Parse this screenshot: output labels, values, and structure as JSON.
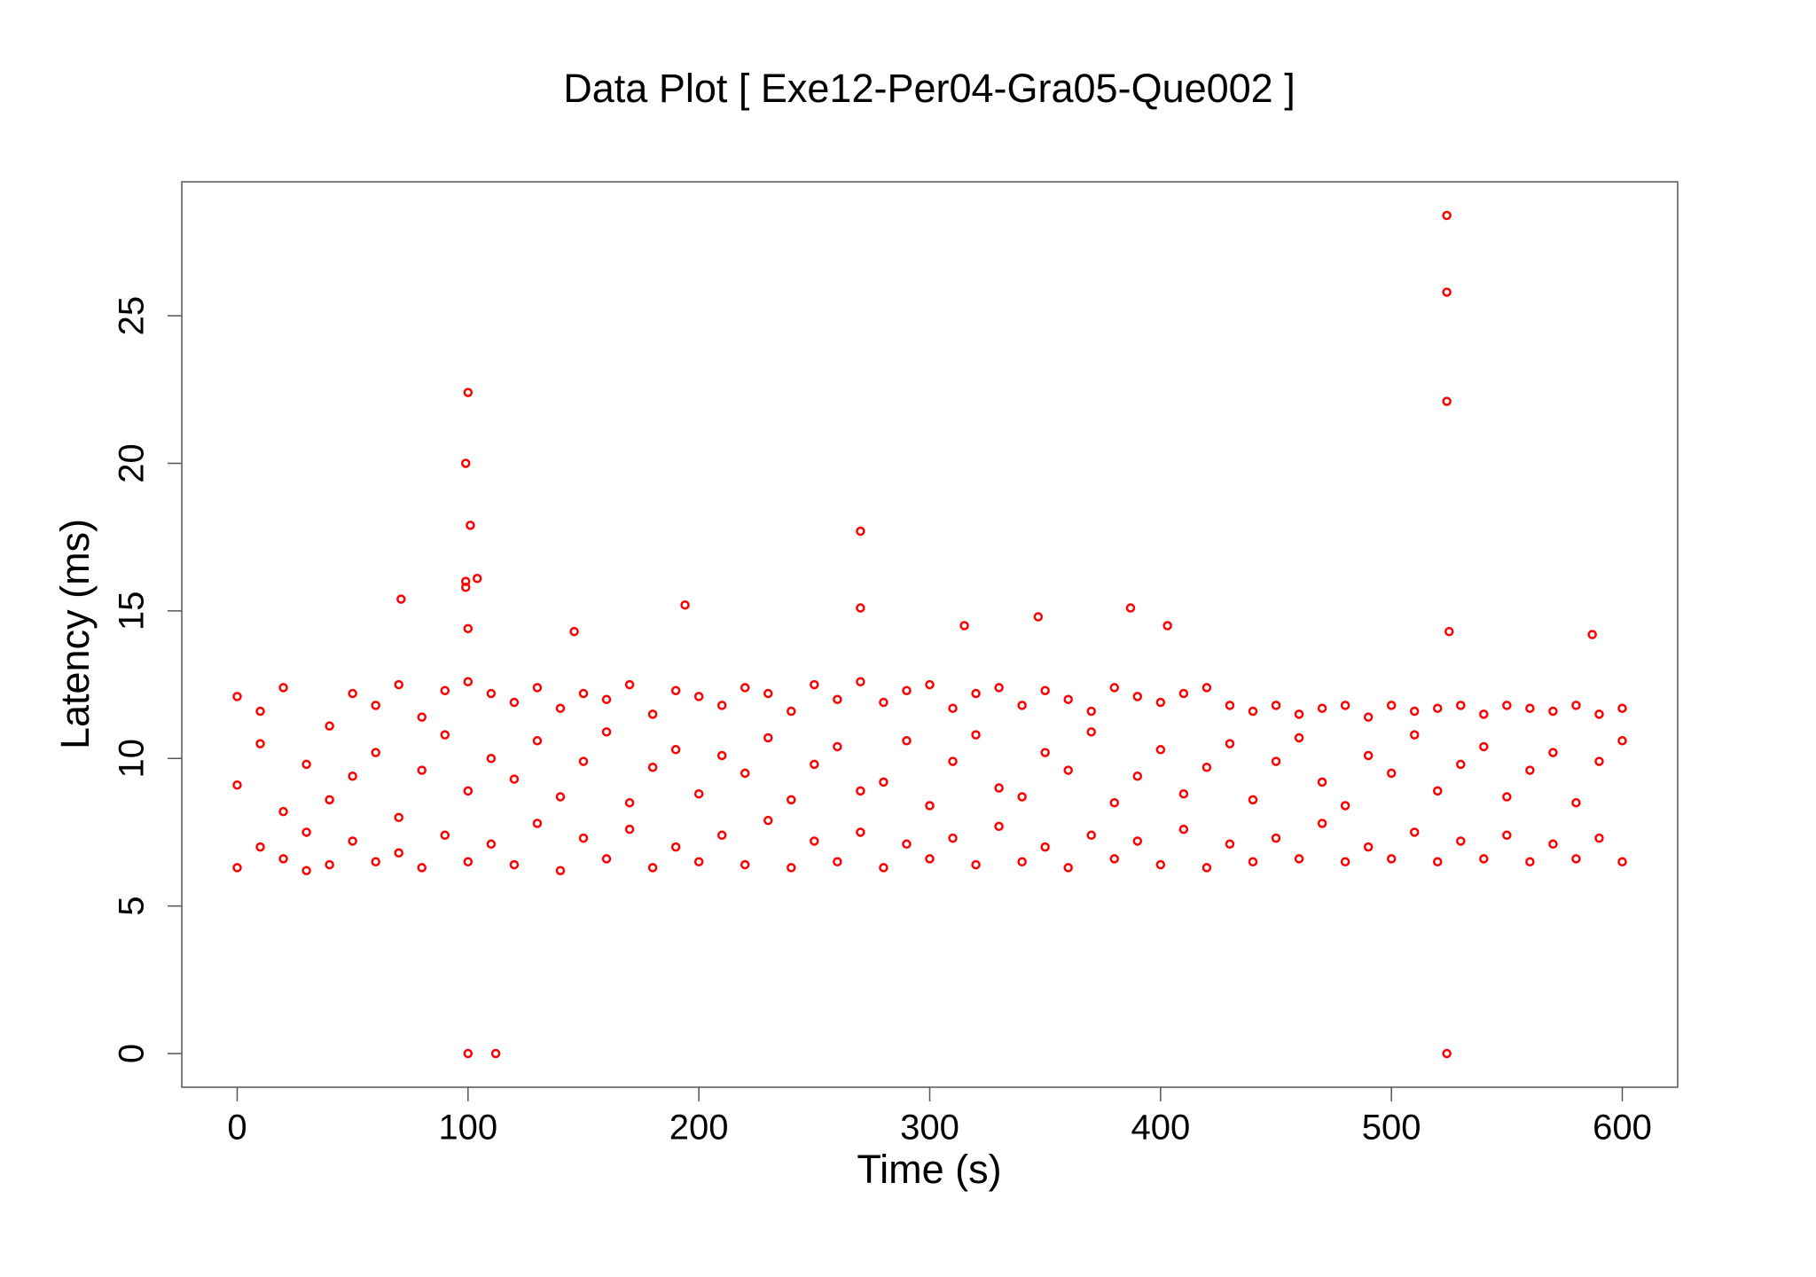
{
  "chart_data": {
    "type": "scatter",
    "title": "Data Plot [ Exe12-Per04-Gra05-Que002 ]",
    "x_label": "Time (s)",
    "y_label": "Latency (ms)",
    "color": "#ff0000",
    "xlim": [
      -24,
      624
    ],
    "ylim": [
      -1.14,
      29.54
    ],
    "xticks": [
      0,
      100,
      200,
      300,
      400,
      500,
      600
    ],
    "yticks": [
      0,
      5,
      10,
      15,
      20,
      25
    ],
    "x": [
      0,
      0,
      0,
      10,
      10,
      10,
      20,
      20,
      20,
      30,
      30,
      30,
      40,
      40,
      40,
      50,
      50,
      50,
      60,
      60,
      60,
      70,
      70,
      70,
      80,
      80,
      80,
      90,
      90,
      90,
      100,
      100,
      100,
      110,
      110,
      110,
      120,
      120,
      120,
      130,
      130,
      130,
      140,
      140,
      140,
      150,
      150,
      150,
      160,
      160,
      160,
      170,
      170,
      170,
      180,
      180,
      180,
      190,
      190,
      190,
      200,
      200,
      200,
      210,
      210,
      210,
      220,
      220,
      220,
      230,
      230,
      230,
      240,
      240,
      240,
      250,
      250,
      250,
      260,
      260,
      260,
      270,
      270,
      270,
      280,
      280,
      280,
      290,
      290,
      290,
      300,
      300,
      300,
      310,
      310,
      310,
      320,
      320,
      320,
      330,
      330,
      330,
      340,
      340,
      340,
      350,
      350,
      350,
      360,
      360,
      360,
      370,
      370,
      370,
      380,
      380,
      380,
      390,
      390,
      390,
      400,
      400,
      400,
      410,
      410,
      410,
      420,
      420,
      420,
      430,
      430,
      430,
      440,
      440,
      440,
      450,
      450,
      450,
      460,
      460,
      460,
      470,
      470,
      470,
      480,
      480,
      480,
      490,
      490,
      490,
      500,
      500,
      500,
      510,
      510,
      510,
      520,
      520,
      520,
      530,
      530,
      530,
      540,
      540,
      540,
      550,
      550,
      550,
      560,
      560,
      560,
      570,
      570,
      570,
      580,
      580,
      580,
      590,
      590,
      590,
      600,
      600,
      600,
      100,
      99,
      101,
      99,
      99,
      104,
      100,
      71,
      270,
      270,
      194,
      387,
      347,
      315,
      403,
      146,
      524,
      524,
      524,
      525,
      587,
      100,
      112,
      524
    ],
    "y": [
      6.3,
      9.1,
      12.1,
      7.0,
      10.5,
      11.6,
      6.6,
      8.2,
      12.4,
      7.5,
      9.8,
      6.2,
      6.4,
      11.1,
      8.6,
      7.2,
      9.4,
      12.2,
      6.5,
      10.2,
      11.8,
      8.0,
      6.8,
      12.5,
      6.3,
      9.6,
      11.4,
      7.4,
      10.8,
      12.3,
      6.5,
      8.9,
      12.6,
      7.1,
      10.0,
      12.2,
      6.4,
      9.3,
      11.9,
      7.8,
      10.6,
      12.4,
      6.2,
      8.7,
      11.7,
      7.3,
      9.9,
      12.2,
      6.6,
      10.9,
      12.0,
      7.6,
      8.5,
      12.5,
      6.3,
      9.7,
      11.5,
      7.0,
      10.3,
      12.3,
      6.5,
      8.8,
      12.1,
      7.4,
      10.1,
      11.8,
      6.4,
      9.5,
      12.4,
      7.9,
      10.7,
      12.2,
      6.3,
      8.6,
      11.6,
      7.2,
      9.8,
      12.5,
      6.5,
      10.4,
      12.0,
      7.5,
      8.9,
      12.6,
      6.3,
      9.2,
      11.9,
      7.1,
      10.6,
      12.3,
      6.6,
      8.4,
      12.5,
      7.3,
      9.9,
      11.7,
      6.4,
      10.8,
      12.2,
      7.7,
      9.0,
      12.4,
      6.5,
      8.7,
      11.8,
      7.0,
      10.2,
      12.3,
      6.3,
      9.6,
      12.0,
      7.4,
      10.9,
      11.6,
      6.6,
      8.5,
      12.4,
      7.2,
      9.4,
      12.1,
      6.4,
      10.3,
      11.9,
      7.6,
      8.8,
      12.2,
      6.3,
      9.7,
      12.4,
      7.1,
      10.5,
      11.8,
      6.5,
      8.6,
      11.6,
      7.3,
      9.9,
      11.8,
      6.6,
      10.7,
      11.5,
      7.8,
      9.2,
      11.7,
      6.5,
      8.4,
      11.8,
      7.0,
      10.1,
      11.4,
      6.6,
      9.5,
      11.8,
      7.5,
      10.8,
      11.6,
      6.5,
      8.9,
      11.7,
      7.2,
      9.8,
      11.8,
      6.6,
      10.4,
      11.5,
      7.4,
      8.7,
      11.8,
      6.5,
      9.6,
      11.7,
      7.1,
      10.2,
      11.6,
      6.6,
      8.5,
      11.8,
      7.3,
      9.9,
      11.5,
      6.5,
      10.6,
      11.7,
      22.4,
      20,
      17.9,
      16,
      15.8,
      16.1,
      14.4,
      15.4,
      17.7,
      15.1,
      15.2,
      15.1,
      14.8,
      14.5,
      14.5,
      14.3,
      28.4,
      25.8,
      22.1,
      14.3,
      14.2,
      0,
      0,
      0
    ]
  }
}
